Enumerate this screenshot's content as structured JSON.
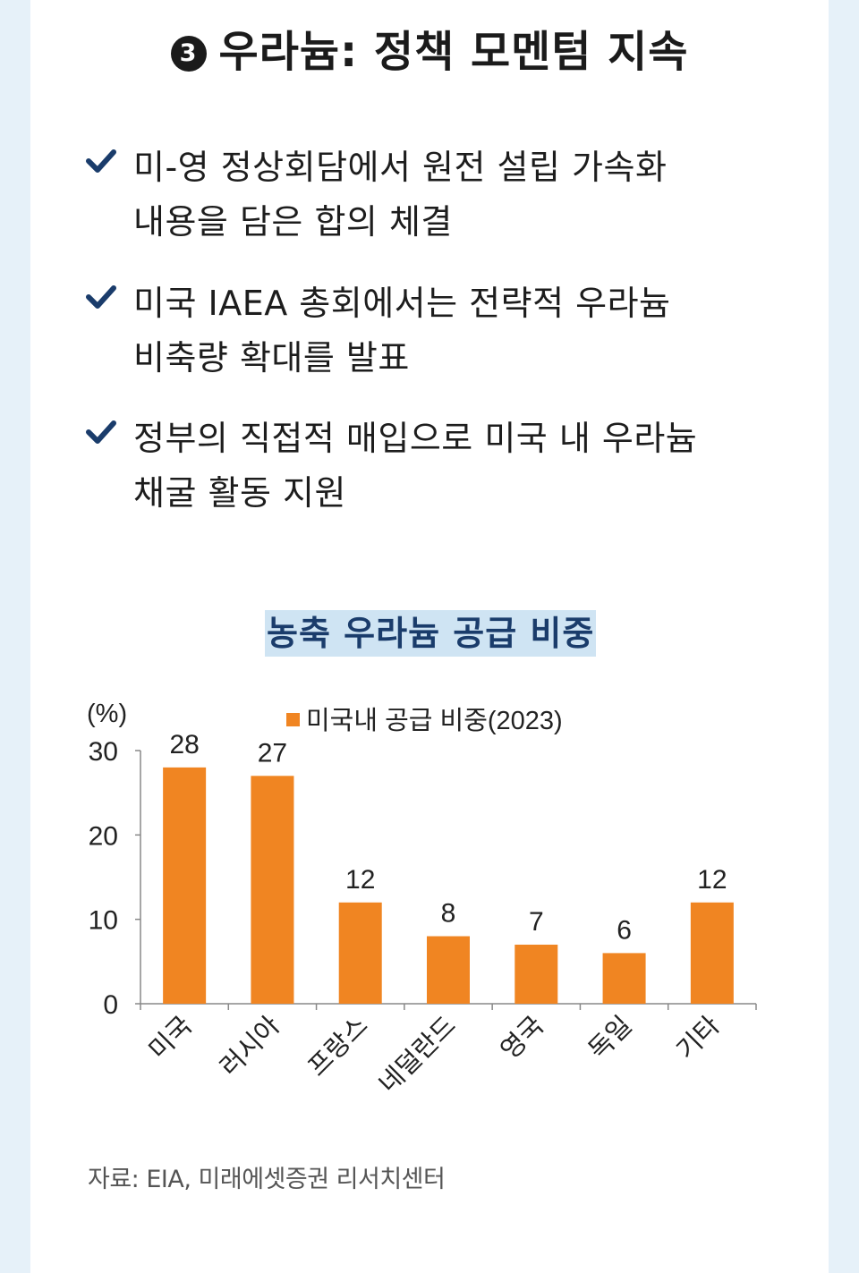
{
  "header": {
    "badge": "3",
    "title": "우라늄: 정책 모멘텀 지속"
  },
  "bullets": [
    {
      "icon": "check-icon",
      "lines": [
        "미-영 정상회담에서 원전 설립 가속화",
        "내용을 담은 합의 체결"
      ]
    },
    {
      "icon": "check-icon",
      "lines": [
        "미국 IAEA 총회에서는 전략적 우라늄",
        "비축량 확대를 발표"
      ]
    },
    {
      "icon": "check-icon",
      "lines": [
        "정부의 직접적 매입으로 미국 내 우라늄",
        "채굴 활동 지원"
      ]
    }
  ],
  "colors": {
    "bar": "#f08522",
    "check": "#1a3c6b",
    "title_highlight": "#cfe4f3"
  },
  "chart_data": {
    "type": "bar",
    "title": "농축 우라늄 공급 비중",
    "ylabel": "(%)",
    "ylim": [
      0,
      30
    ],
    "yticks": [
      0,
      10,
      20,
      30
    ],
    "categories": [
      "미국",
      "러시아",
      "프랑스",
      "네덜란드",
      "영국",
      "독일",
      "기타"
    ],
    "series": [
      {
        "name": "미국내 공급 비중(2023)",
        "values": [
          28,
          27,
          12,
          8,
          7,
          6,
          12
        ]
      }
    ],
    "legend": "top",
    "grid": false
  },
  "source": "자료: EIA, 미래에셋증권 리서치센터"
}
